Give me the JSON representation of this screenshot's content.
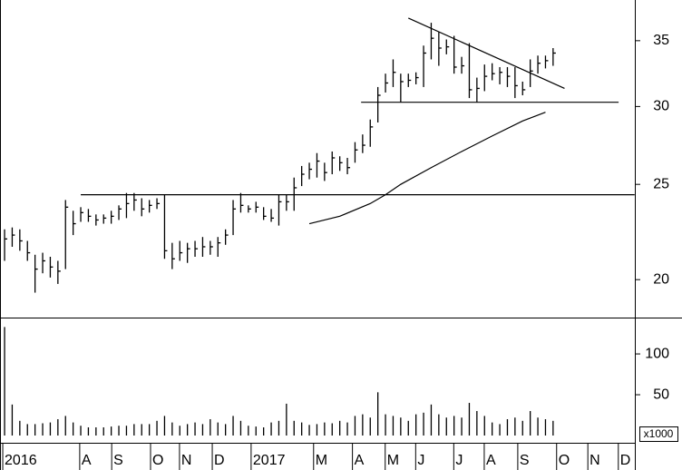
{
  "chart_data": [
    {
      "type": "ohlc",
      "log_scale": true,
      "color": "#000000",
      "x": [
        0,
        1,
        2,
        3,
        4,
        5,
        6,
        7,
        8,
        9,
        10,
        11,
        12,
        13,
        14,
        15,
        16,
        17,
        18,
        19,
        20,
        21,
        22,
        23,
        24,
        25,
        26,
        27,
        28,
        29,
        30,
        31,
        32,
        33,
        34,
        35,
        36,
        37,
        38,
        39,
        40,
        41,
        42,
        43,
        44,
        45,
        46,
        47,
        48,
        49,
        50,
        51,
        52,
        53,
        54,
        55,
        56,
        57,
        58,
        59,
        60,
        61,
        62,
        63,
        64,
        65,
        66,
        67,
        68,
        69,
        70,
        71,
        72
      ],
      "high": [
        22.5,
        22.6,
        22.5,
        21.9,
        21.2,
        21.3,
        21.1,
        20.9,
        24.1,
        23.5,
        23.7,
        23.6,
        23.3,
        23.3,
        23.5,
        23.8,
        24.5,
        24.5,
        24.2,
        24.1,
        24.2,
        24.4,
        21.8,
        21.9,
        21.8,
        21.9,
        22.1,
        21.9,
        22.1,
        22.5,
        24.1,
        24.5,
        23.8,
        24.0,
        23.7,
        23.6,
        24.4,
        24.4,
        25.4,
        26.1,
        26.3,
        26.9,
        26.3,
        27.0,
        26.7,
        26.6,
        27.6,
        28.1,
        29.1,
        31.4,
        32.4,
        33.5,
        32.4,
        32.4,
        32.5,
        34.6,
        36.5,
        35.7,
        35.1,
        35.4,
        33.7,
        34.8,
        32.1,
        33.1,
        33.2,
        32.9,
        32.9,
        32.9,
        31.8,
        33.5,
        33.8,
        33.8,
        34.4
      ],
      "low": [
        20.9,
        21.6,
        21.4,
        20.9,
        19.4,
        20.3,
        20.1,
        19.8,
        20.5,
        22.2,
        22.9,
        22.9,
        22.7,
        22.8,
        22.8,
        23.0,
        23.1,
        23.5,
        23.2,
        23.4,
        23.6,
        21.0,
        20.5,
        20.9,
        20.8,
        21.1,
        21.1,
        21.2,
        21.1,
        21.7,
        22.2,
        23.4,
        23.4,
        23.4,
        23.0,
        22.9,
        22.7,
        23.5,
        23.5,
        24.9,
        25.3,
        25.4,
        25.2,
        25.6,
        25.8,
        25.6,
        26.3,
        26.9,
        27.3,
        28.9,
        31.0,
        31.4,
        30.3,
        31.4,
        31.6,
        31.4,
        33.5,
        33.0,
        33.9,
        32.4,
        32.4,
        30.6,
        30.3,
        31.1,
        31.9,
        31.6,
        31.4,
        30.6,
        30.8,
        31.4,
        32.4,
        32.8,
        33.0
      ],
      "close": [
        22.0,
        22.2,
        21.9,
        21.3,
        20.5,
        20.9,
        20.6,
        20.4,
        23.7,
        22.8,
        23.4,
        23.2,
        23.0,
        23.1,
        23.2,
        23.6,
        23.9,
        24.1,
        23.6,
        23.8,
        23.9,
        21.4,
        21.0,
        21.3,
        21.5,
        21.5,
        21.6,
        21.6,
        21.8,
        22.2,
        23.6,
        23.8,
        23.6,
        23.7,
        23.2,
        23.1,
        24.0,
        24.0,
        24.8,
        25.6,
        25.9,
        26.4,
        25.7,
        26.6,
        26.3,
        26.0,
        27.1,
        27.4,
        28.6,
        30.8,
        31.7,
        32.5,
        31.8,
        31.9,
        32.1,
        34.0,
        35.2,
        34.4,
        34.5,
        32.9,
        33.0,
        31.2,
        31.3,
        32.2,
        32.4,
        32.5,
        32.2,
        31.5,
        31.2,
        32.6,
        33.2,
        33.4,
        34.0
      ],
      "lines": [
        {
          "x": [
            10,
            82.7
          ],
          "values": [
            24.4,
            24.4
          ]
        },
        {
          "x": [
            46.8,
            80.6
          ],
          "values": [
            30.3,
            30.3
          ]
        },
        {
          "x": [
            53,
            73.5
          ],
          "values": [
            36.9,
            31.3
          ]
        },
        {
          "x": [
            40,
            44,
            48,
            50,
            52,
            56,
            60,
            64,
            68,
            71
          ],
          "values": [
            22.8,
            23.2,
            23.9,
            24.4,
            25.0,
            26.0,
            27.0,
            28.0,
            29.0,
            29.6
          ]
        }
      ],
      "xlim": [
        -0.6,
        82.73
      ],
      "ylim": [
        18.3,
        38.5
      ],
      "yticks": [
        20,
        25,
        30,
        35
      ]
    },
    {
      "type": "bar",
      "color": "#000000",
      "y_unit_label": "x1000",
      "x": [
        0,
        1,
        2,
        3,
        4,
        5,
        6,
        7,
        8,
        9,
        10,
        11,
        12,
        13,
        14,
        15,
        16,
        17,
        18,
        19,
        20,
        21,
        22,
        23,
        24,
        25,
        26,
        27,
        28,
        29,
        30,
        31,
        32,
        33,
        34,
        35,
        36,
        37,
        38,
        39,
        40,
        41,
        42,
        43,
        44,
        45,
        46,
        47,
        48,
        49,
        50,
        51,
        52,
        53,
        54,
        55,
        56,
        57,
        58,
        59,
        60,
        61,
        62,
        63,
        64,
        65,
        66,
        67,
        68,
        69,
        70,
        71,
        72
      ],
      "values": [
        133,
        38,
        18,
        14,
        14,
        15,
        16,
        20,
        24,
        16,
        12,
        10,
        10,
        10,
        11,
        12,
        12,
        14,
        14,
        14,
        18,
        24,
        16,
        12,
        14,
        16,
        14,
        20,
        16,
        14,
        24,
        18,
        12,
        11,
        10,
        16,
        18,
        39,
        18,
        16,
        13,
        14,
        16,
        15,
        18,
        16,
        24,
        26,
        22,
        53,
        26,
        24,
        22,
        18,
        26,
        28,
        38,
        26,
        22,
        24,
        22,
        40,
        30,
        24,
        16,
        14,
        20,
        22,
        18,
        30,
        22,
        20,
        18
      ],
      "xlim": [
        -0.6,
        82.73
      ],
      "ylim": [
        0,
        139
      ],
      "yticks": [
        50,
        100
      ],
      "xticks": [
        {
          "value": 0,
          "label": "2016"
        },
        {
          "value": 10.1,
          "label": "A"
        },
        {
          "value": 14.3,
          "label": "S"
        },
        {
          "value": 19.4,
          "label": "O"
        },
        {
          "value": 23.2,
          "label": "N"
        },
        {
          "value": 27.5,
          "label": "D"
        },
        {
          "value": 32.6,
          "label": "2017"
        },
        {
          "value": 40.8,
          "label": "M"
        },
        {
          "value": 45.9,
          "label": "A"
        },
        {
          "value": 50.2,
          "label": "M"
        },
        {
          "value": 54.2,
          "label": "J"
        },
        {
          "value": 59.2,
          "label": "J"
        },
        {
          "value": 63.2,
          "label": "A"
        },
        {
          "value": 67.6,
          "label": "S"
        },
        {
          "value": 72.7,
          "label": "O"
        },
        {
          "value": 76.8,
          "label": "N"
        },
        {
          "value": 80.8,
          "label": "D"
        }
      ]
    }
  ]
}
